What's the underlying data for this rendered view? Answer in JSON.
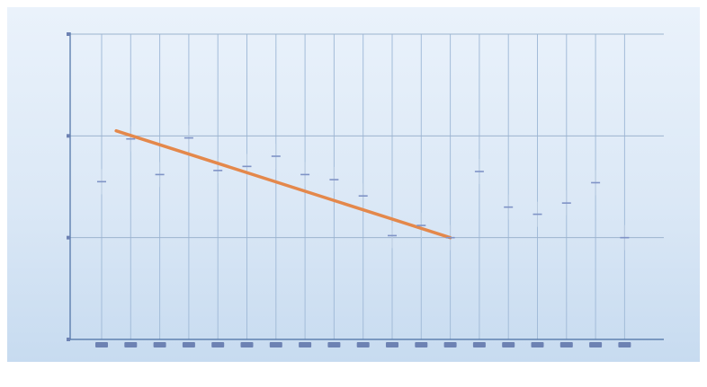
{
  "chart_data": {
    "type": "scatter",
    "title": "",
    "xlabel": "",
    "ylabel": "",
    "categories": [
      "",
      "",
      "",
      "",
      "",
      "",
      "",
      "",
      "",
      "",
      "",
      "",
      "",
      "",
      "",
      "",
      "",
      "",
      ""
    ],
    "ylim": [
      0,
      3
    ],
    "yticks": [
      "",
      "",
      "",
      ""
    ],
    "grid": true,
    "series": [
      {
        "values": [
          1.55,
          1.97,
          1.62,
          1.98,
          1.66,
          1.7,
          1.8,
          1.62,
          1.57,
          1.41,
          1.02,
          1.12,
          1.0,
          1.65,
          1.3,
          1.23,
          1.34,
          1.54,
          1.0
        ]
      }
    ],
    "trendline": {
      "from": {
        "category_index": 0.5,
        "value": 2.05
      },
      "to": {
        "category_index": 12.0,
        "value": 1.0
      }
    },
    "colors": {
      "axis": "#4a6fa3",
      "grid": "#a3bcd9",
      "marker": "#7f93c6",
      "trendline": "#e4884b"
    }
  }
}
